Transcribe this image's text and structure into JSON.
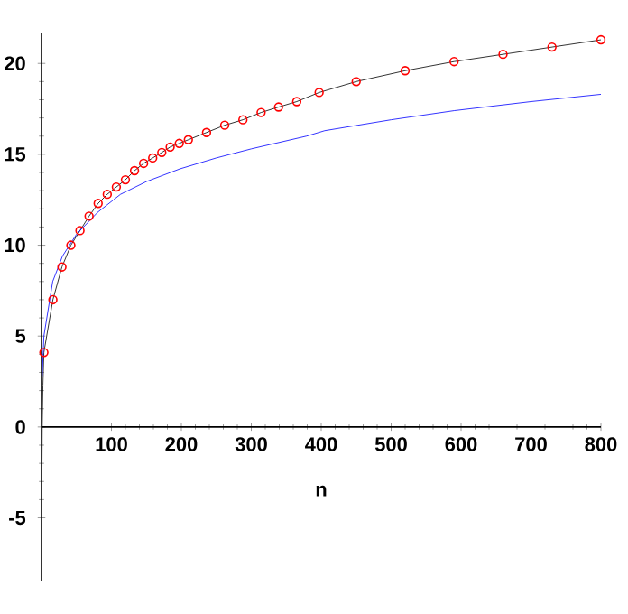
{
  "chart_data": {
    "type": "line",
    "xlabel": "n",
    "xlim": [
      0,
      800
    ],
    "ylim": [
      -8.5,
      21.7
    ],
    "xticks": [
      100,
      200,
      300,
      400,
      500,
      600,
      700,
      800
    ],
    "yticks": [
      -5,
      0,
      5,
      10,
      15,
      20
    ],
    "grid": false,
    "series": [
      {
        "color": "#000000",
        "x": [
          0.3,
          1,
          2,
          3.4,
          16.3,
          29.2,
          42,
          55,
          68,
          81,
          94,
          107,
          120,
          133,
          146,
          159,
          172,
          184,
          197,
          210,
          236,
          262,
          288,
          314,
          339,
          365,
          397,
          450,
          520,
          590,
          660,
          730,
          800
        ],
        "values": [
          -4.6,
          0,
          2.3,
          4.1,
          7.0,
          8.8,
          10.0,
          10.8,
          11.6,
          12.3,
          12.8,
          13.2,
          13.6,
          14.1,
          14.5,
          14.8,
          15.1,
          15.4,
          15.6,
          15.8,
          16.2,
          16.6,
          16.9,
          17.3,
          17.6,
          17.9,
          18.4,
          19.0,
          19.6,
          20.1,
          20.5,
          20.9,
          21.3
        ]
      },
      {
        "type": "scatter",
        "marker": "circle",
        "color": "#ff0000",
        "x": [
          3.4,
          16.3,
          29.2,
          42,
          55,
          68,
          81,
          94,
          107,
          120,
          133,
          146,
          159,
          172,
          184,
          197,
          210,
          236,
          262,
          288,
          314,
          339,
          365,
          397,
          450,
          520,
          590,
          660,
          730,
          800
        ],
        "values": [
          4.1,
          7.0,
          8.8,
          10.0,
          10.8,
          11.6,
          12.3,
          12.8,
          13.2,
          13.6,
          14.1,
          14.5,
          14.8,
          15.1,
          15.4,
          15.6,
          15.8,
          16.2,
          16.6,
          16.9,
          17.3,
          17.6,
          17.9,
          18.4,
          19.0,
          19.6,
          20.1,
          20.5,
          20.9,
          21.3
        ]
      },
      {
        "color": "#0000ff",
        "x": [
          1,
          3.4,
          16,
          30,
          50,
          80,
          113,
          150,
          198,
          250,
          300,
          379,
          405,
          500,
          590,
          700,
          800
        ],
        "values": [
          2.8,
          5.0,
          8.0,
          9.4,
          10.6,
          11.8,
          12.8,
          13.5,
          14.2,
          14.8,
          15.3,
          16.0,
          16.3,
          16.9,
          17.4,
          17.9,
          18.3
        ]
      }
    ]
  }
}
